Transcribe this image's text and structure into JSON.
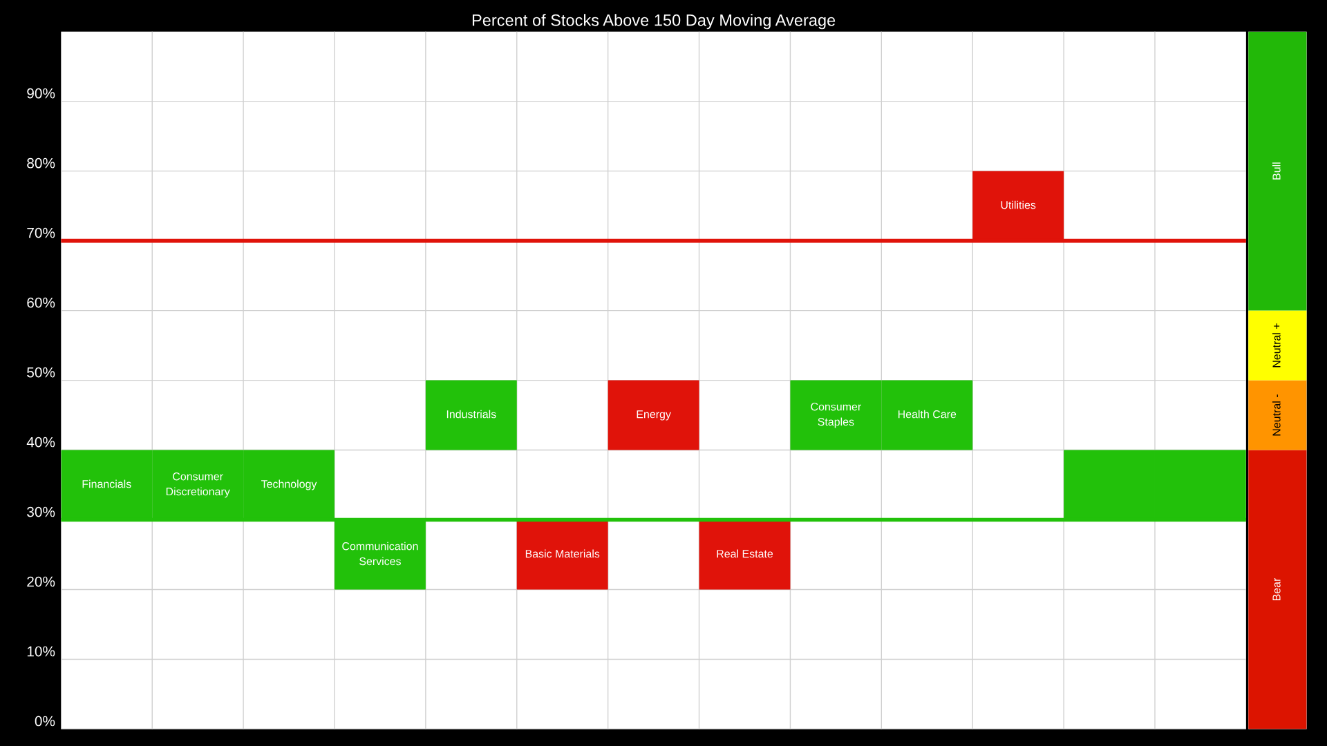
{
  "chart_data": [
    {
      "type": "bar",
      "title": "Percent of Stocks Above 150 Day Moving Average",
      "categories": [
        "Financials",
        "Consumer Discretionary",
        "Technology",
        "Communication Services",
        "Industrials",
        "Basic Materials",
        "Energy",
        "Real Estate",
        "Consumer Staples",
        "Health Care",
        "Utilities",
        null,
        null
      ],
      "values": [
        10,
        10,
        10,
        10,
        10,
        10,
        10,
        10,
        10,
        10,
        10,
        10,
        10
      ],
      "base": [
        30,
        30,
        30,
        20,
        40,
        20,
        40,
        20,
        40,
        40,
        70,
        30,
        30
      ],
      "colors": [
        "#22c10a",
        "#22c10a",
        "#22c10a",
        "#22c10a",
        "#22c10a",
        "#e0130a",
        "#e0130a",
        "#e0130a",
        "#22c10a",
        "#22c10a",
        "#e0130a",
        "#22c10a",
        "#22c10a"
      ],
      "ylim": [
        0,
        100
      ],
      "yticks": [
        {
          "value": 0,
          "label": "0%"
        },
        {
          "value": 10,
          "label": "10%"
        },
        {
          "value": 20,
          "label": "20%"
        },
        {
          "value": 30,
          "label": "30%"
        },
        {
          "value": 40,
          "label": "40%"
        },
        {
          "value": 50,
          "label": "50%"
        },
        {
          "value": 60,
          "label": "60%"
        },
        {
          "value": 70,
          "label": "70%"
        },
        {
          "value": 80,
          "label": "80%"
        },
        {
          "value": 90,
          "label": "90%"
        }
      ],
      "ref_lines": [
        {
          "axis": "y",
          "value": 70,
          "color": "#e0130a"
        },
        {
          "axis": "y",
          "value": 30,
          "color": "#22c10a"
        }
      ],
      "grid": true,
      "tick_labels": "y"
    },
    {
      "type": "bar",
      "stacked": true,
      "categories": [
        null
      ],
      "ylim": [
        0,
        100
      ],
      "tick_labels": false,
      "series": [
        {
          "name": "Bear",
          "color": "#dc1400",
          "values": [
            40
          ]
        },
        {
          "name": "Neutral -",
          "color": "#ff9400",
          "values": [
            10
          ]
        },
        {
          "name": "Neutral +",
          "color": "#ffff00",
          "values": [
            10
          ]
        },
        {
          "name": "Bull",
          "color": "#22b808",
          "values": [
            40
          ]
        }
      ]
    }
  ]
}
